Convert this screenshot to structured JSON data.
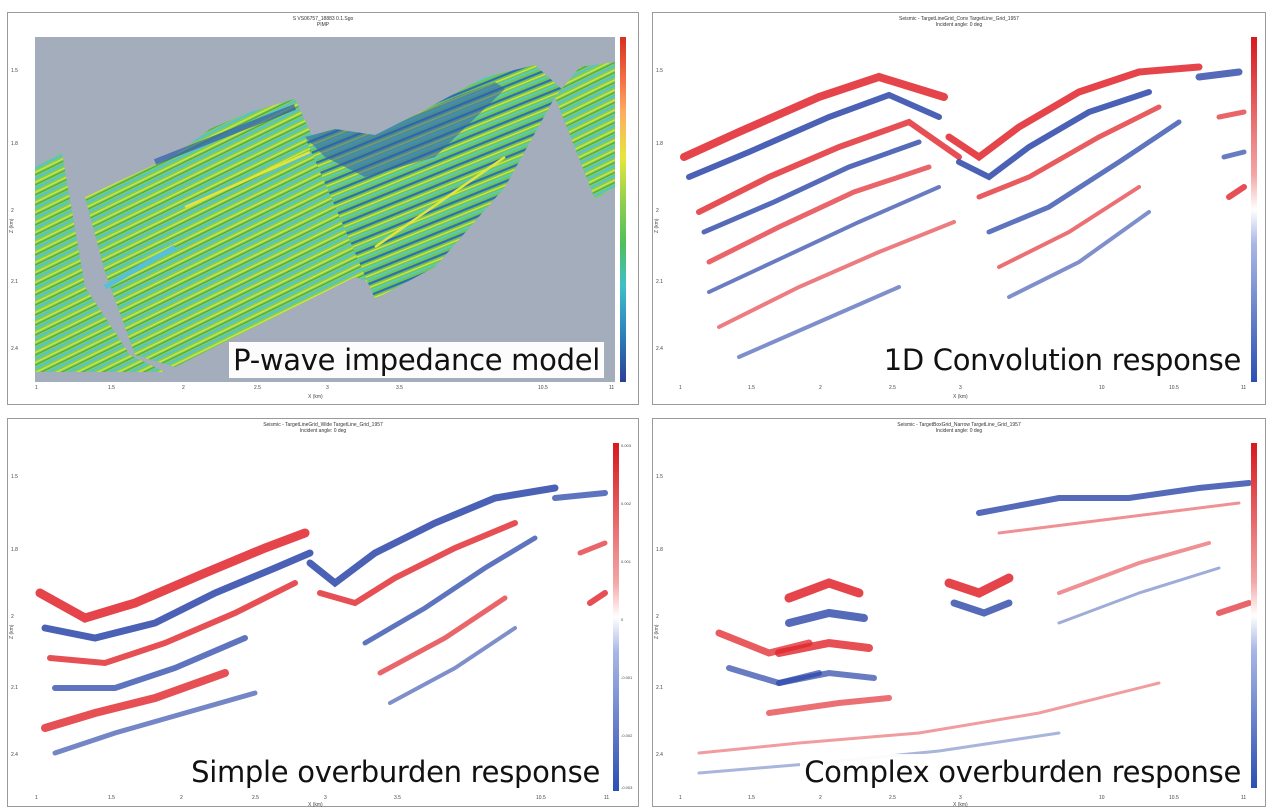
{
  "panels": [
    {
      "caption": "P-wave impedance model",
      "title_line1": "S VS06757_18883 0.1.Sgo",
      "title_line2": "PIMP",
      "xlabel": "X (km)",
      "ylabel": "Z (km)",
      "yticks": [
        "1.5",
        "1.8",
        "2",
        "2.1",
        "2.4"
      ],
      "xticks": [
        "1",
        "1.5",
        "2",
        "2.5",
        "3",
        "3.5",
        "10.5",
        "11"
      ],
      "colorbar_ticks": [
        "",
        "",
        "",
        "",
        "",
        "",
        ""
      ]
    },
    {
      "caption": "1D Convolution response",
      "title_line1": "Seismic - TargetLineGrid_Conv TargetLine_Grid_1957",
      "title_line2": "Incident angle: 0 deg",
      "xlabel": "X (km)",
      "ylabel": "Z (km)",
      "yticks": [
        "1.5",
        "1.8",
        "2",
        "2.1",
        "2.4"
      ],
      "xticks": [
        "1",
        "1.5",
        "2",
        "2.5",
        "3",
        "10",
        "10.5",
        "11"
      ],
      "colorbar_ticks": [
        "",
        "",
        "",
        "",
        "",
        "",
        ""
      ]
    },
    {
      "caption": "Simple overburden response",
      "title_line1": "Seismic - TargetLineGrid_Wide TargetLine_Grid_1957",
      "title_line2": "Incident angle: 0 deg",
      "xlabel": "X (km)",
      "ylabel": "Z (km)",
      "yticks": [
        "1.5",
        "1.8",
        "2",
        "2.1",
        "2.4"
      ],
      "xticks": [
        "1",
        "1.5",
        "2",
        "2.5",
        "3",
        "3.5",
        "10.5",
        "11"
      ],
      "colorbar_ticks": [
        "0.003",
        "0.002",
        "0.001",
        "0",
        "-0.001",
        "-0.002",
        "-0.003"
      ]
    },
    {
      "caption": "Complex overburden response",
      "title_line1": "Seismic - TargetBoxGrid_Narrow TargetLine_Grid_1957",
      "title_line2": "Incident angle: 0 deg",
      "xlabel": "X (km)",
      "ylabel": "Z (km)",
      "yticks": [
        "1.5",
        "1.8",
        "2",
        "2.1",
        "2.4"
      ],
      "xticks": [
        "1",
        "1.5",
        "2",
        "2.5",
        "3",
        "10",
        "10.5",
        "11"
      ],
      "colorbar_ticks": [
        "",
        "",
        "",
        "",
        "",
        "",
        ""
      ]
    }
  ],
  "colors": {
    "model_background": "#a4adbb",
    "seismic_positive": "#e0242a",
    "seismic_negative": "#2a45a8"
  }
}
